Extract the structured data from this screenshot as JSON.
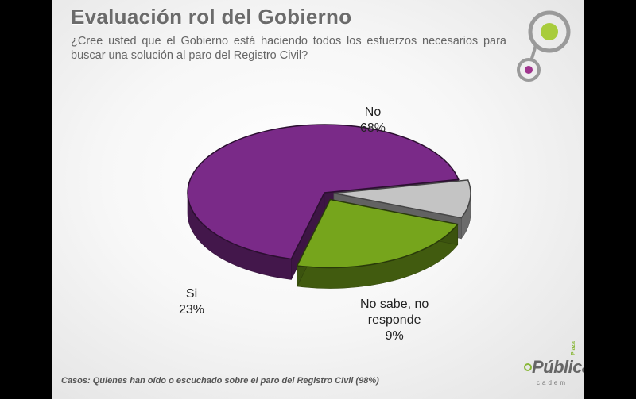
{
  "title": "Evaluación rol del Gobierno",
  "subtitle": "¿Cree usted que el Gobierno está haciendo todos los esfuerzos necesarios para buscar una solución al paro del Registro Civil?",
  "footer_note": "Casos: Quienes han oído o escuchado sobre el paro del Registro Civil (98%)",
  "brand": {
    "name": "Pública",
    "superscript": "Plaza",
    "sub": "cadem"
  },
  "colors": {
    "no": "#7a2a88",
    "si": "#76a51c",
    "ns": "#c4c4c4",
    "logo_green": "#a8cc3c",
    "logo_purple": "#a0358e",
    "logo_gray": "#9a9a9a"
  },
  "chart_data": {
    "type": "pie",
    "style": "3d",
    "slices": [
      {
        "label": "No",
        "label_lines": [
          "No"
        ],
        "value": 68,
        "display": "68%",
        "color": "#7a2a88"
      },
      {
        "label": "No sabe, no responde",
        "label_lines": [
          "No sabe, no",
          "responde"
        ],
        "value": 9,
        "display": "9%",
        "color": "#c4c4c4"
      },
      {
        "label": "Si",
        "label_lines": [
          "Si"
        ],
        "value": 23,
        "display": "23%",
        "color": "#76a51c"
      }
    ]
  }
}
